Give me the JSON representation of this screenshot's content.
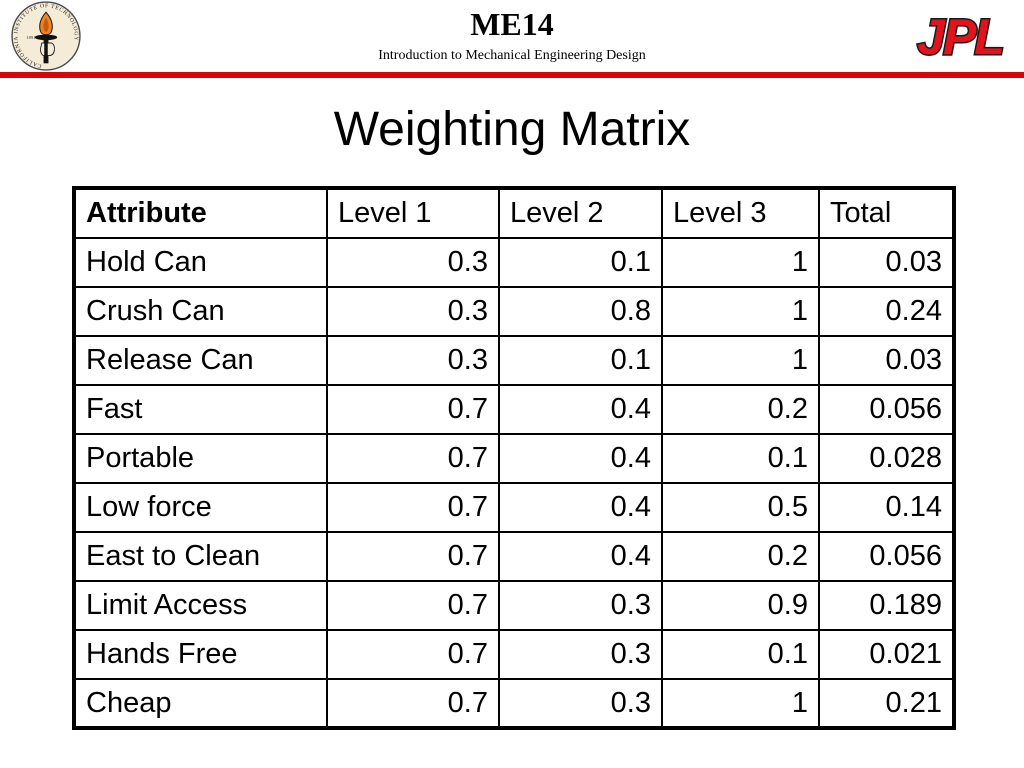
{
  "header": {
    "course_code": "ME14",
    "course_title": "Introduction to Mechanical Engineering Design",
    "caltech_seal": {
      "ring_text": "CALIFORNIA INSTITUTE OF TECHNOLOGY",
      "year": "1891"
    },
    "jpl_logo_text": "JPL"
  },
  "slide": {
    "title": "Weighting Matrix"
  },
  "table": {
    "columns": [
      "Attribute",
      "Level 1",
      "Level 2",
      "Level 3",
      "Total"
    ],
    "rows": [
      [
        "Hold Can",
        "0.3",
        "0.1",
        "1",
        "0.03"
      ],
      [
        "Crush Can",
        "0.3",
        "0.8",
        "1",
        "0.24"
      ],
      [
        "Release Can",
        "0.3",
        "0.1",
        "1",
        "0.03"
      ],
      [
        "Fast",
        "0.7",
        "0.4",
        "0.2",
        "0.056"
      ],
      [
        "Portable",
        "0.7",
        "0.4",
        "0.1",
        "0.028"
      ],
      [
        "Low force",
        "0.7",
        "0.4",
        "0.5",
        "0.14"
      ],
      [
        "East to Clean",
        "0.7",
        "0.4",
        "0.2",
        "0.056"
      ],
      [
        "Limit Access",
        "0.7",
        "0.3",
        "0.9",
        "0.189"
      ],
      [
        "Hands Free",
        "0.7",
        "0.3",
        "0.1",
        "0.021"
      ],
      [
        "Cheap",
        "0.7",
        "0.3",
        "1",
        "0.21"
      ]
    ]
  },
  "colors": {
    "divider_red": "#d40808",
    "jpl_red": "#e2131d",
    "jpl_outline": "#1a1a1a",
    "seal_cream": "#f5ecd7",
    "flame_orange": "#ef8423"
  }
}
